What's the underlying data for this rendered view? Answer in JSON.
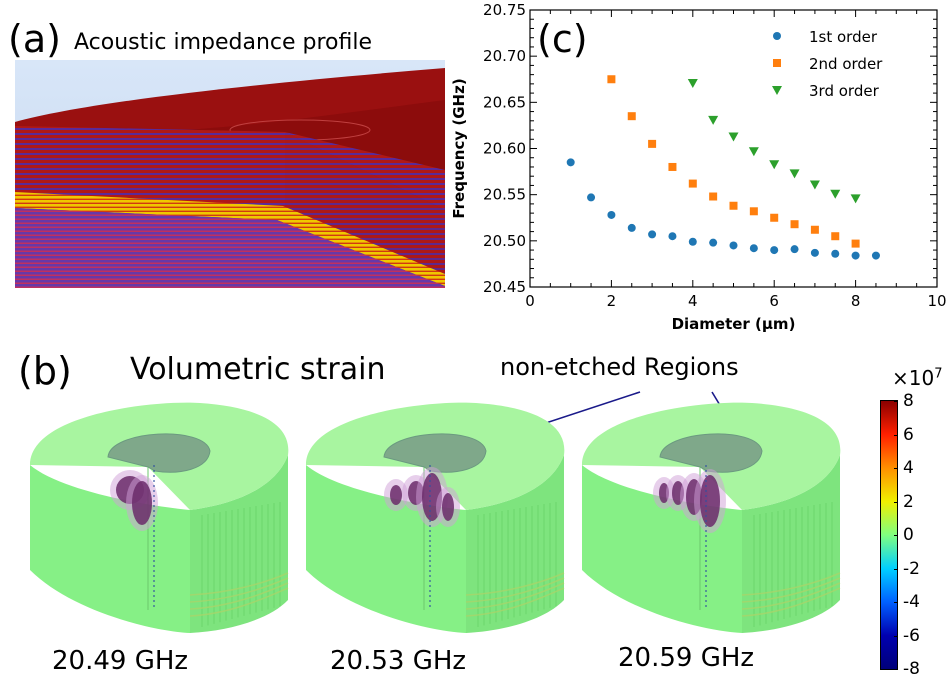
{
  "panels": {
    "a": {
      "label": "(a)",
      "title": "Acoustic impedance profile"
    },
    "b": {
      "label": "(b)",
      "title": "Volumetric strain",
      "annotation": "non-etched Regions",
      "frequencies": [
        "20.49 GHz",
        "20.53 GHz",
        "20.59 GHz"
      ]
    },
    "c": {
      "label": "(c)"
    }
  },
  "colorbar": {
    "multiplier": "×10",
    "exponent": "7",
    "ticks": [
      "8",
      "6",
      "4",
      "2",
      "0",
      "-2",
      "-4",
      "-6",
      "-8"
    ],
    "colors": [
      "#8b0000",
      "#ff2000",
      "#ff9000",
      "#f0f000",
      "#80ff80",
      "#00d0ff",
      "#0060ff",
      "#0000b0",
      "#00007a"
    ]
  },
  "chart_data": {
    "type": "scatter",
    "xlabel": "Diameter  (μm)",
    "ylabel": "Frequency (GHz)",
    "xlim": [
      0,
      10
    ],
    "ylim": [
      20.45,
      20.75
    ],
    "xticks": [
      0,
      2,
      4,
      6,
      8,
      10
    ],
    "yticks": [
      "20.45",
      "20.50",
      "20.55",
      "20.60",
      "20.65",
      "20.70",
      "20.75"
    ],
    "legend_position": "top-right",
    "series": [
      {
        "name": "1st order",
        "color": "#1f77b4",
        "marker": "circle",
        "x": [
          1,
          1.5,
          2,
          2.5,
          3,
          3.5,
          4,
          4.5,
          5,
          5.5,
          6,
          6.5,
          7,
          7.5,
          8,
          8.5
        ],
        "y": [
          20.585,
          20.547,
          20.528,
          20.514,
          20.507,
          20.505,
          20.499,
          20.498,
          20.495,
          20.492,
          20.49,
          20.491,
          20.487,
          20.486,
          20.484,
          20.484
        ]
      },
      {
        "name": "2nd order",
        "color": "#ff7f0e",
        "marker": "square",
        "x": [
          2,
          2.5,
          3,
          3.5,
          4,
          4.5,
          5,
          5.5,
          6,
          6.5,
          7,
          7.5,
          8
        ],
        "y": [
          20.675,
          20.635,
          20.605,
          20.58,
          20.562,
          20.548,
          20.538,
          20.532,
          20.525,
          20.518,
          20.512,
          20.505,
          20.497
        ]
      },
      {
        "name": "3rd order",
        "color": "#2ca02c",
        "marker": "triangle",
        "x": [
          4,
          4.5,
          5,
          5.5,
          6,
          6.5,
          7,
          7.5,
          8
        ],
        "y": [
          20.671,
          20.631,
          20.613,
          20.597,
          20.583,
          20.573,
          20.561,
          20.551,
          20.546
        ]
      }
    ]
  }
}
